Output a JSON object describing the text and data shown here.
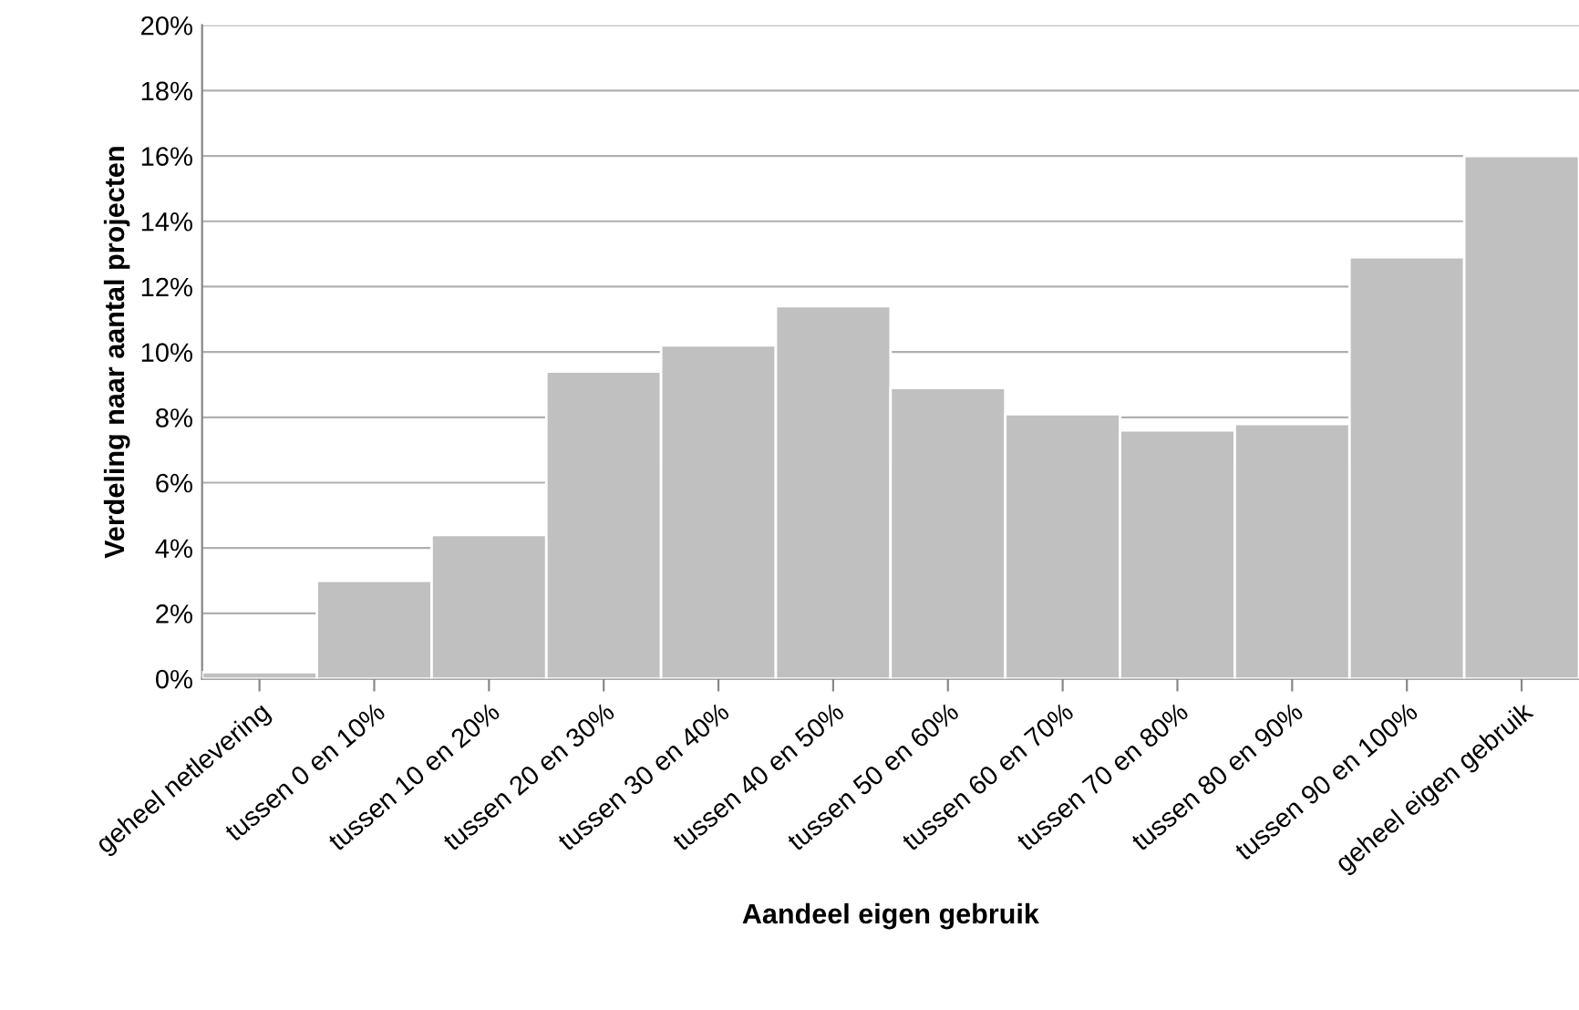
{
  "chart_data": {
    "type": "bar",
    "xlabel": "Aandeel eigen gebruik",
    "ylabel": "Verdeling naar aantal projecten",
    "categories": [
      "geheel netlevering",
      "tussen 0 en 10%",
      "tussen 10 en 20%",
      "tussen 20 en 30%",
      "tussen 30 en 40%",
      "tussen 40 en 50%",
      "tussen 50 en 60%",
      "tussen 60 en 70%",
      "tussen 70 en 80%",
      "tussen 80 en 90%",
      "tussen 90 en 100%",
      "geheel eigen gebruik"
    ],
    "values": [
      0.2,
      3.0,
      4.4,
      9.4,
      10.2,
      11.4,
      8.9,
      8.1,
      7.6,
      7.8,
      12.9,
      16.0
    ],
    "color": "#c0c0c0",
    "ylim": [
      0,
      20
    ],
    "yticks": [
      {
        "value": 0,
        "label": "0%"
      },
      {
        "value": 2,
        "label": "2%"
      },
      {
        "value": 4,
        "label": "4%"
      },
      {
        "value": 6,
        "label": "6%"
      },
      {
        "value": 8,
        "label": "8%"
      },
      {
        "value": 10,
        "label": "10%"
      },
      {
        "value": 12,
        "label": "12%"
      },
      {
        "value": 14,
        "label": "14%"
      },
      {
        "value": 16,
        "label": "16%"
      },
      {
        "value": 18,
        "label": "18%"
      },
      {
        "value": 20,
        "label": "20%"
      }
    ],
    "grid": "y",
    "legend": false
  }
}
